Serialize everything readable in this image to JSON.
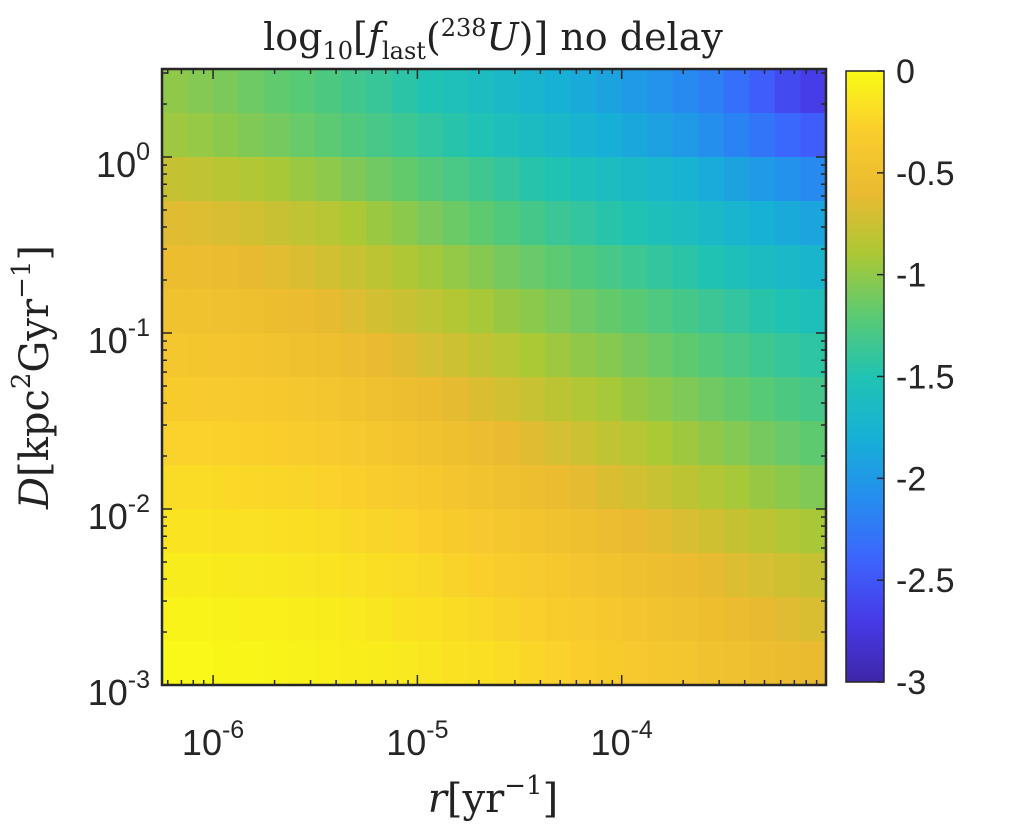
{
  "chart_data": {
    "type": "heatmap",
    "title": "log₁₀[f_last(²³⁸U)] no delay",
    "title_parts": {
      "log": "log",
      "log_sub": "10",
      "f": "f",
      "f_sub": "last",
      "iso": "238",
      "element": "U",
      "rest": "no delay"
    },
    "xlabel": "r[yr⁻¹]",
    "xlabel_parts": {
      "var": "r",
      "unit": "yr",
      "exp": "−1"
    },
    "ylabel": "D[kpc²Gyr⁻¹]",
    "ylabel_parts": {
      "var": "D",
      "unit1": "kpc",
      "exp1": "2",
      "unit2": "Gyr",
      "exp2": "−1"
    },
    "x_scale": "log",
    "y_scale": "log",
    "x_range_log10": [
      -6.25,
      -3.0
    ],
    "y_range_log10": [
      -3.0,
      0.5
    ],
    "x_ticks": [
      {
        "value": -6,
        "base": "10",
        "exp": "-6"
      },
      {
        "value": -5,
        "base": "10",
        "exp": "-5"
      },
      {
        "value": -4,
        "base": "10",
        "exp": "-4"
      }
    ],
    "y_ticks": [
      {
        "value": -3,
        "base": "10",
        "exp": "-3"
      },
      {
        "value": -2,
        "base": "10",
        "exp": "-2"
      },
      {
        "value": -1,
        "base": "10",
        "exp": "-1"
      },
      {
        "value": 0,
        "base": "10",
        "exp": "0"
      }
    ],
    "colorbar": {
      "colormap": "parula",
      "range": [
        -3,
        0
      ],
      "ticks": [
        0,
        -0.5,
        -1,
        -1.5,
        -2,
        -2.5,
        -3
      ],
      "tick_labels": [
        "0",
        "-0.5",
        "-1",
        "-1.5",
        "-2",
        "-2.5",
        "-3"
      ]
    },
    "grid": false,
    "nx": 26,
    "ny": 14,
    "z_rows_top_to_bottom": [
      [
        -1.0,
        -1.05,
        -1.08,
        -1.13,
        -1.18,
        -1.22,
        -1.27,
        -1.33,
        -1.38,
        -1.44,
        -1.5,
        -1.55,
        -1.61,
        -1.67,
        -1.73,
        -1.79,
        -1.85,
        -1.92,
        -1.98,
        -2.05,
        -2.12,
        -2.2,
        -2.32,
        -2.45,
        -2.58,
        -2.68
      ],
      [
        -0.95,
        -0.98,
        -1.02,
        -1.06,
        -1.1,
        -1.15,
        -1.2,
        -1.25,
        -1.3,
        -1.35,
        -1.41,
        -1.46,
        -1.52,
        -1.58,
        -1.63,
        -1.69,
        -1.75,
        -1.81,
        -1.87,
        -1.93,
        -2.0,
        -2.08,
        -2.17,
        -2.27,
        -2.37,
        -2.45
      ],
      [
        -0.78,
        -0.8,
        -0.83,
        -0.87,
        -0.91,
        -0.96,
        -1.01,
        -1.06,
        -1.12,
        -1.17,
        -1.23,
        -1.29,
        -1.34,
        -1.4,
        -1.46,
        -1.51,
        -1.56,
        -1.61,
        -1.66,
        -1.71,
        -1.77,
        -1.84,
        -1.91,
        -1.99,
        -2.06,
        -2.12
      ],
      [
        -0.65,
        -0.66,
        -0.69,
        -0.72,
        -0.76,
        -0.8,
        -0.85,
        -0.9,
        -0.96,
        -1.02,
        -1.08,
        -1.14,
        -1.19,
        -1.25,
        -1.31,
        -1.36,
        -1.41,
        -1.46,
        -1.51,
        -1.56,
        -1.61,
        -1.67,
        -1.73,
        -1.79,
        -1.85,
        -1.9
      ],
      [
        -0.55,
        -0.56,
        -0.58,
        -0.61,
        -0.64,
        -0.68,
        -0.72,
        -0.77,
        -0.82,
        -0.88,
        -0.93,
        -0.99,
        -1.04,
        -1.1,
        -1.15,
        -1.2,
        -1.25,
        -1.3,
        -1.35,
        -1.4,
        -1.45,
        -1.5,
        -1.56,
        -1.62,
        -1.67,
        -1.72
      ],
      [
        -0.47,
        -0.48,
        -0.5,
        -0.52,
        -0.55,
        -0.58,
        -0.62,
        -0.66,
        -0.71,
        -0.76,
        -0.81,
        -0.86,
        -0.92,
        -0.97,
        -1.02,
        -1.07,
        -1.12,
        -1.17,
        -1.21,
        -1.26,
        -1.31,
        -1.36,
        -1.41,
        -1.46,
        -1.51,
        -1.56
      ],
      [
        -0.4,
        -0.41,
        -0.42,
        -0.44,
        -0.46,
        -0.49,
        -0.52,
        -0.56,
        -0.6,
        -0.65,
        -0.7,
        -0.75,
        -0.8,
        -0.85,
        -0.9,
        -0.95,
        -1.0,
        -1.04,
        -1.09,
        -1.14,
        -1.19,
        -1.24,
        -1.29,
        -1.34,
        -1.39,
        -1.43
      ],
      [
        -0.33,
        -0.34,
        -0.35,
        -0.36,
        -0.38,
        -0.4,
        -0.43,
        -0.46,
        -0.5,
        -0.54,
        -0.58,
        -0.63,
        -0.67,
        -0.72,
        -0.77,
        -0.82,
        -0.87,
        -0.92,
        -0.97,
        -1.02,
        -1.07,
        -1.12,
        -1.17,
        -1.22,
        -1.27,
        -1.31
      ],
      [
        -0.27,
        -0.27,
        -0.28,
        -0.29,
        -0.3,
        -0.32,
        -0.34,
        -0.37,
        -0.4,
        -0.44,
        -0.48,
        -0.52,
        -0.56,
        -0.6,
        -0.65,
        -0.7,
        -0.75,
        -0.8,
        -0.85,
        -0.9,
        -0.95,
        -1.0,
        -1.05,
        -1.1,
        -1.15,
        -1.19
      ],
      [
        -0.21,
        -0.21,
        -0.22,
        -0.23,
        -0.24,
        -0.25,
        -0.27,
        -0.29,
        -0.32,
        -0.35,
        -0.38,
        -0.42,
        -0.46,
        -0.5,
        -0.54,
        -0.58,
        -0.63,
        -0.67,
        -0.72,
        -0.77,
        -0.82,
        -0.87,
        -0.92,
        -0.97,
        -1.02,
        -1.06
      ],
      [
        -0.15,
        -0.15,
        -0.16,
        -0.17,
        -0.18,
        -0.19,
        -0.21,
        -0.23,
        -0.25,
        -0.27,
        -0.3,
        -0.33,
        -0.36,
        -0.4,
        -0.44,
        -0.48,
        -0.52,
        -0.56,
        -0.6,
        -0.64,
        -0.69,
        -0.73,
        -0.78,
        -0.82,
        -0.87,
        -0.91
      ],
      [
        -0.1,
        -0.1,
        -0.11,
        -0.12,
        -0.13,
        -0.14,
        -0.15,
        -0.17,
        -0.19,
        -0.21,
        -0.23,
        -0.26,
        -0.29,
        -0.32,
        -0.35,
        -0.38,
        -0.42,
        -0.46,
        -0.5,
        -0.54,
        -0.58,
        -0.62,
        -0.66,
        -0.7,
        -0.74,
        -0.78
      ],
      [
        -0.05,
        -0.05,
        -0.06,
        -0.07,
        -0.08,
        -0.09,
        -0.1,
        -0.12,
        -0.14,
        -0.16,
        -0.18,
        -0.2,
        -0.23,
        -0.26,
        -0.29,
        -0.32,
        -0.35,
        -0.38,
        -0.42,
        -0.46,
        -0.5,
        -0.53,
        -0.57,
        -0.61,
        -0.65,
        -0.68
      ],
      [
        -0.02,
        -0.02,
        -0.03,
        -0.04,
        -0.05,
        -0.06,
        -0.07,
        -0.09,
        -0.1,
        -0.12,
        -0.14,
        -0.16,
        -0.18,
        -0.21,
        -0.24,
        -0.27,
        -0.3,
        -0.33,
        -0.36,
        -0.4,
        -0.43,
        -0.47,
        -0.5,
        -0.54,
        -0.57,
        -0.6
      ]
    ]
  }
}
